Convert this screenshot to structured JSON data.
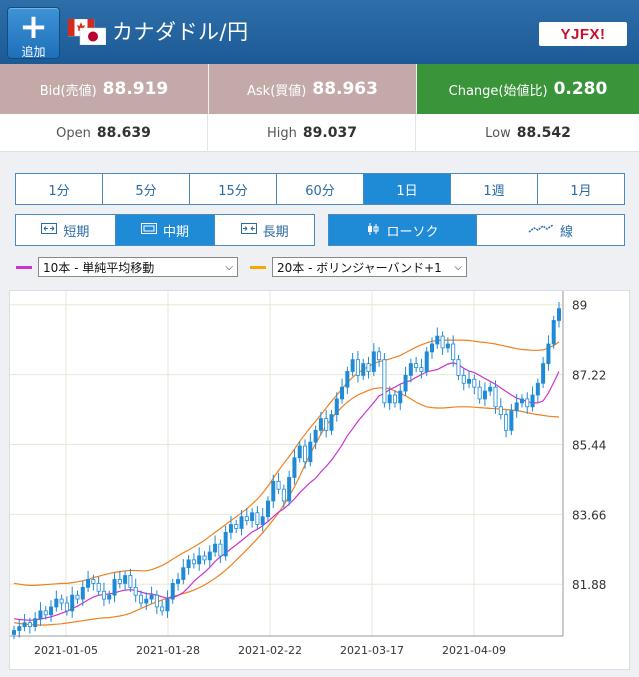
{
  "header": {
    "add_button_label": "追加",
    "title": "カナダドル/円",
    "logo_text": "YJFX!"
  },
  "quote": {
    "bid_label": "Bid(売値)",
    "bid_value": "88.919",
    "ask_label": "Ask(買値)",
    "ask_value": "88.963",
    "change_label": "Change(始値比)",
    "change_value": "0.280",
    "bid_color": "#c3aaa8",
    "change_color": "#3a943a"
  },
  "ohl": {
    "open_label": "Open",
    "open_value": "88.639",
    "high_label": "High",
    "high_value": "89.037",
    "low_label": "Low",
    "low_value": "88.542"
  },
  "timeframes": [
    {
      "label": "1分",
      "active": false
    },
    {
      "label": "5分",
      "active": false
    },
    {
      "label": "15分",
      "active": false
    },
    {
      "label": "60分",
      "active": false
    },
    {
      "label": "1日",
      "active": true
    },
    {
      "label": "1週",
      "active": false
    },
    {
      "label": "1月",
      "active": false
    }
  ],
  "terms": [
    {
      "label": "短期",
      "icon": "expand-icon",
      "active": false
    },
    {
      "label": "中期",
      "icon": "monitor-icon",
      "active": true
    },
    {
      "label": "長期",
      "icon": "compress-icon",
      "active": false
    }
  ],
  "chart_types": [
    {
      "label": "ローソク",
      "icon": "candlestick-icon",
      "active": true
    },
    {
      "label": "線",
      "icon": "line-chart-icon",
      "active": false
    }
  ],
  "indicators": [
    {
      "label": "10本 - 単純平均移動",
      "color": "#cc33cc"
    },
    {
      "label": "20本 - ボリンジャーバンド+1",
      "color": "#f5a800"
    }
  ],
  "chart_data": {
    "type": "candlestick",
    "x_tick_labels": [
      "2021-01-05",
      "2021-01-28",
      "2021-02-22",
      "2021-03-17",
      "2021-04-09"
    ],
    "y_tick_labels": [
      "89",
      "87.22",
      "85.44",
      "83.66",
      "81.88"
    ],
    "y_ticks": [
      89,
      87.22,
      85.44,
      83.66,
      81.88
    ],
    "ylim": [
      80.56,
      89.35
    ],
    "grid": true,
    "candle_up_color": "#1f8ad6",
    "close": [
      80.7,
      80.8,
      80.9,
      80.8,
      81.0,
      81.2,
      81.1,
      81.3,
      81.5,
      81.4,
      81.2,
      81.6,
      81.5,
      81.8,
      82.0,
      81.9,
      81.7,
      81.5,
      81.6,
      82.0,
      81.9,
      82.1,
      81.8,
      81.6,
      81.4,
      81.5,
      81.6,
      81.3,
      81.2,
      81.5,
      81.9,
      82.0,
      82.3,
      82.5,
      82.4,
      82.6,
      82.5,
      82.7,
      82.9,
      82.6,
      83.2,
      83.4,
      83.3,
      83.6,
      83.5,
      83.7,
      83.4,
      83.6,
      84.0,
      84.5,
      84.3,
      84.0,
      84.6,
      85.1,
      85.4,
      85.0,
      85.5,
      85.8,
      86.1,
      85.8,
      86.2,
      86.6,
      86.9,
      87.3,
      87.6,
      87.2,
      87.5,
      87.3,
      87.8,
      87.6,
      86.5,
      86.7,
      86.5,
      86.8,
      87.2,
      87.5,
      87.4,
      87.3,
      87.8,
      88.0,
      88.2,
      87.9,
      88.0,
      87.6,
      87.2,
      87.0,
      87.1,
      86.9,
      86.6,
      86.8,
      86.9,
      86.4,
      86.2,
      85.8,
      86.3,
      86.5,
      86.6,
      86.4,
      86.7,
      87.0,
      87.5,
      88.0,
      88.6,
      88.9
    ],
    "sma10": [
      81.0,
      80.98,
      80.97,
      80.96,
      80.97,
      80.99,
      81.02,
      81.05,
      81.09,
      81.14,
      81.19,
      81.26,
      81.32,
      81.4,
      81.48,
      81.55,
      81.6,
      81.62,
      81.63,
      81.66,
      81.7,
      81.73,
      81.74,
      81.72,
      81.68,
      81.64,
      81.63,
      81.6,
      81.56,
      81.52,
      81.54,
      81.59,
      81.67,
      81.8,
      81.95,
      82.07,
      82.18,
      82.31,
      82.46,
      82.58,
      82.67,
      82.78,
      82.88,
      82.99,
      83.1,
      83.21,
      83.28,
      83.37,
      83.48,
      83.6,
      83.72,
      83.8,
      83.92,
      84.05,
      84.21,
      84.34,
      84.47,
      84.58,
      84.74,
      84.88,
      85.04,
      85.23,
      85.43,
      85.66,
      85.84,
      86.03,
      86.19,
      86.35,
      86.51,
      86.68,
      86.74,
      86.84,
      86.9,
      86.98,
      87.03,
      87.07,
      87.15,
      87.22,
      87.29,
      87.32,
      87.35,
      87.42,
      87.49,
      87.52,
      87.47,
      87.38,
      87.31,
      87.27,
      87.2,
      87.12,
      87.05,
      86.97,
      86.88,
      86.79,
      86.7,
      86.62,
      86.58,
      86.53,
      86.5,
      86.5,
      86.55,
      86.75,
      87.02,
      87.3
    ],
    "bb_upper": [
      81.9,
      81.88,
      81.86,
      81.85,
      81.85,
      81.86,
      81.87,
      81.88,
      81.89,
      81.9,
      81.9,
      81.92,
      81.94,
      81.97,
      82.0,
      82.05,
      82.08,
      82.12,
      82.15,
      82.18,
      82.2,
      82.22,
      82.23,
      82.23,
      82.22,
      82.22,
      82.25,
      82.3,
      82.36,
      82.43,
      82.52,
      82.6,
      82.68,
      82.75,
      82.83,
      82.91,
      83.0,
      83.1,
      83.2,
      83.3,
      83.4,
      83.5,
      83.6,
      83.7,
      83.8,
      83.92,
      84.05,
      84.2,
      84.38,
      84.58,
      84.78,
      84.96,
      85.13,
      85.32,
      85.52,
      85.7,
      85.87,
      86.03,
      86.2,
      86.37,
      86.54,
      86.7,
      86.86,
      87.02,
      87.15,
      87.26,
      87.35,
      87.43,
      87.5,
      87.55,
      87.58,
      87.62,
      87.66,
      87.71,
      87.78,
      87.85,
      87.92,
      87.98,
      88.03,
      88.07,
      88.09,
      88.1,
      88.1,
      88.1,
      88.1,
      88.1,
      88.09,
      88.07,
      88.05,
      88.04,
      88.02,
      88.0,
      87.97,
      87.94,
      87.91,
      87.88,
      87.86,
      87.85,
      87.84,
      87.84,
      87.85,
      87.9,
      87.96,
      88.05
    ],
    "bb_lower": [
      80.9,
      80.88,
      80.86,
      80.85,
      80.84,
      80.84,
      80.84,
      80.85,
      80.86,
      80.87,
      80.89,
      80.91,
      80.93,
      80.95,
      80.97,
      80.99,
      81.01,
      81.02,
      81.03,
      81.05,
      81.07,
      81.1,
      81.14,
      81.2,
      81.26,
      81.32,
      81.38,
      81.43,
      81.48,
      81.53,
      81.57,
      81.6,
      81.64,
      81.68,
      81.73,
      81.79,
      81.86,
      81.94,
      82.03,
      82.13,
      82.24,
      82.36,
      82.49,
      82.62,
      82.76,
      82.9,
      83.04,
      83.19,
      83.35,
      83.52,
      83.7,
      83.9,
      84.12,
      84.36,
      84.63,
      84.92,
      85.2,
      85.46,
      85.7,
      85.92,
      86.1,
      86.26,
      86.4,
      86.52,
      86.62,
      86.7,
      86.76,
      86.82,
      86.86,
      86.88,
      86.88,
      86.86,
      86.8,
      86.74,
      86.68,
      86.6,
      86.52,
      86.45,
      86.4,
      86.38,
      86.37,
      86.37,
      86.38,
      86.39,
      86.4,
      86.4,
      86.4,
      86.39,
      86.38,
      86.37,
      86.36,
      86.35,
      86.34,
      86.33,
      86.32,
      86.3,
      86.28,
      86.25,
      86.22,
      86.2,
      86.18,
      86.16,
      86.15,
      86.14
    ]
  }
}
